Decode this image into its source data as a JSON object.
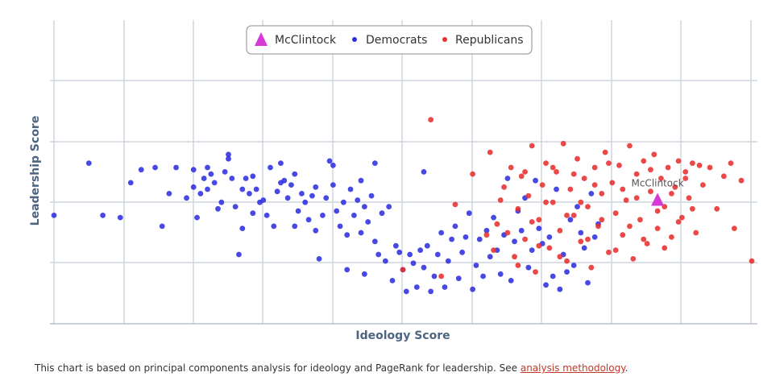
{
  "chart_data": {
    "type": "scatter",
    "xlabel": "Ideology Score",
    "ylabel": "Leadership Score",
    "xlim": [
      -1.0,
      1.0
    ],
    "ylim": [
      0,
      1
    ],
    "grid": true,
    "legend_position": "top-center",
    "series": [
      {
        "name": "McClintock",
        "marker": "triangle",
        "color": "#d63ad6",
        "points": [
          [
            0.73,
            0.45
          ]
        ],
        "label": "McClintock"
      },
      {
        "name": "Democrats",
        "marker": "circle",
        "color": "#2f2fe0",
        "points": [
          [
            -1.0,
            0.38
          ],
          [
            -0.9,
            0.62
          ],
          [
            -0.86,
            0.38
          ],
          [
            -0.81,
            0.37
          ],
          [
            -0.78,
            0.53
          ],
          [
            -0.75,
            0.59
          ],
          [
            -0.71,
            0.6
          ],
          [
            -0.69,
            0.33
          ],
          [
            -0.67,
            0.48
          ],
          [
            -0.65,
            0.6
          ],
          [
            -0.62,
            0.46
          ],
          [
            -0.6,
            0.51
          ],
          [
            -0.6,
            0.59
          ],
          [
            -0.59,
            0.37
          ],
          [
            -0.58,
            0.48
          ],
          [
            -0.57,
            0.55
          ],
          [
            -0.56,
            0.5
          ],
          [
            -0.56,
            0.6
          ],
          [
            -0.55,
            0.57
          ],
          [
            -0.54,
            0.53
          ],
          [
            -0.53,
            0.41
          ],
          [
            -0.52,
            0.44
          ],
          [
            -0.51,
            0.58
          ],
          [
            -0.5,
            0.66
          ],
          [
            -0.5,
            0.64
          ],
          [
            -0.49,
            0.55
          ],
          [
            -0.48,
            0.42
          ],
          [
            -0.47,
            0.2
          ],
          [
            -0.46,
            0.5
          ],
          [
            -0.46,
            0.32
          ],
          [
            -0.45,
            0.55
          ],
          [
            -0.44,
            0.48
          ],
          [
            -0.43,
            0.39
          ],
          [
            -0.43,
            0.56
          ],
          [
            -0.42,
            0.5
          ],
          [
            -0.41,
            0.44
          ],
          [
            -0.4,
            0.45
          ],
          [
            -0.39,
            0.38
          ],
          [
            -0.38,
            0.6
          ],
          [
            -0.37,
            0.33
          ],
          [
            -0.36,
            0.49
          ],
          [
            -0.35,
            0.53
          ],
          [
            -0.35,
            0.62
          ],
          [
            -0.34,
            0.54
          ],
          [
            -0.33,
            0.46
          ],
          [
            -0.32,
            0.52
          ],
          [
            -0.31,
            0.33
          ],
          [
            -0.31,
            0.57
          ],
          [
            -0.3,
            0.4
          ],
          [
            -0.29,
            0.48
          ],
          [
            -0.28,
            0.44
          ],
          [
            -0.27,
            0.36
          ],
          [
            -0.26,
            0.47
          ],
          [
            -0.25,
            0.31
          ],
          [
            -0.25,
            0.51
          ],
          [
            -0.24,
            0.18
          ],
          [
            -0.23,
            0.38
          ],
          [
            -0.22,
            0.46
          ],
          [
            -0.21,
            0.63
          ],
          [
            -0.2,
            0.61
          ],
          [
            -0.2,
            0.52
          ],
          [
            -0.19,
            0.4
          ],
          [
            -0.18,
            0.33
          ],
          [
            -0.17,
            0.44
          ],
          [
            -0.16,
            0.29
          ],
          [
            -0.16,
            0.13
          ],
          [
            -0.15,
            0.5
          ],
          [
            -0.14,
            0.38
          ],
          [
            -0.13,
            0.45
          ],
          [
            -0.12,
            0.3
          ],
          [
            -0.12,
            0.54
          ],
          [
            -0.11,
            0.11
          ],
          [
            -0.11,
            0.42
          ],
          [
            -0.1,
            0.35
          ],
          [
            -0.09,
            0.47
          ],
          [
            -0.08,
            0.26
          ],
          [
            -0.08,
            0.62
          ],
          [
            -0.07,
            0.2
          ],
          [
            -0.06,
            0.39
          ],
          [
            -0.05,
            0.17
          ],
          [
            -0.04,
            0.42
          ],
          [
            -0.03,
            0.08
          ],
          [
            -0.02,
            0.24
          ],
          [
            -0.01,
            0.21
          ],
          [
            0.0,
            0.13
          ],
          [
            0.01,
            0.03
          ],
          [
            0.02,
            0.2
          ],
          [
            0.03,
            0.16
          ],
          [
            0.04,
            0.05
          ],
          [
            0.05,
            0.22
          ],
          [
            0.06,
            0.14
          ],
          [
            0.06,
            0.58
          ],
          [
            0.07,
            0.24
          ],
          [
            0.08,
            0.03
          ],
          [
            0.09,
            0.1
          ],
          [
            0.1,
            0.2
          ],
          [
            0.11,
            0.3
          ],
          [
            0.12,
            0.05
          ],
          [
            0.13,
            0.17
          ],
          [
            0.14,
            0.27
          ],
          [
            0.15,
            0.33
          ],
          [
            0.16,
            0.09
          ],
          [
            0.17,
            0.21
          ],
          [
            0.18,
            0.28
          ],
          [
            0.19,
            0.39
          ],
          [
            0.2,
            0.04
          ],
          [
            0.21,
            0.15
          ],
          [
            0.22,
            0.27
          ],
          [
            0.23,
            0.1
          ],
          [
            0.24,
            0.31
          ],
          [
            0.25,
            0.19
          ],
          [
            0.26,
            0.37
          ],
          [
            0.27,
            0.22
          ],
          [
            0.28,
            0.11
          ],
          [
            0.29,
            0.29
          ],
          [
            0.3,
            0.55
          ],
          [
            0.31,
            0.08
          ],
          [
            0.32,
            0.26
          ],
          [
            0.33,
            0.4
          ],
          [
            0.34,
            0.31
          ],
          [
            0.35,
            0.46
          ],
          [
            0.36,
            0.14
          ],
          [
            0.37,
            0.22
          ],
          [
            0.38,
            0.54
          ],
          [
            0.39,
            0.32
          ],
          [
            0.4,
            0.25
          ],
          [
            0.41,
            0.06
          ],
          [
            0.42,
            0.28
          ],
          [
            0.43,
            0.1
          ],
          [
            0.44,
            0.5
          ],
          [
            0.45,
            0.04
          ],
          [
            0.46,
            0.2
          ],
          [
            0.47,
            0.12
          ],
          [
            0.48,
            0.36
          ],
          [
            0.49,
            0.15
          ],
          [
            0.5,
            0.42
          ],
          [
            0.51,
            0.3
          ],
          [
            0.52,
            0.23
          ],
          [
            0.53,
            0.07
          ],
          [
            0.54,
            0.48
          ],
          [
            0.55,
            0.28
          ],
          [
            0.56,
            0.34
          ]
        ]
      },
      {
        "name": "Republicans",
        "marker": "circle",
        "color": "#e8302f",
        "points": [
          [
            0.08,
            0.82
          ],
          [
            0.0,
            0.13
          ],
          [
            0.11,
            0.1
          ],
          [
            0.15,
            0.43
          ],
          [
            0.2,
            0.57
          ],
          [
            0.24,
            0.29
          ],
          [
            0.25,
            0.67
          ],
          [
            0.27,
            0.34
          ],
          [
            0.29,
            0.51
          ],
          [
            0.31,
            0.6
          ],
          [
            0.32,
            0.19
          ],
          [
            0.33,
            0.41
          ],
          [
            0.34,
            0.56
          ],
          [
            0.35,
            0.27
          ],
          [
            0.36,
            0.47
          ],
          [
            0.37,
            0.7
          ],
          [
            0.38,
            0.12
          ],
          [
            0.39,
            0.36
          ],
          [
            0.4,
            0.52
          ],
          [
            0.41,
            0.62
          ],
          [
            0.42,
            0.23
          ],
          [
            0.43,
            0.44
          ],
          [
            0.44,
            0.58
          ],
          [
            0.45,
            0.31
          ],
          [
            0.46,
            0.71
          ],
          [
            0.47,
            0.17
          ],
          [
            0.48,
            0.5
          ],
          [
            0.49,
            0.38
          ],
          [
            0.5,
            0.64
          ],
          [
            0.51,
            0.26
          ],
          [
            0.52,
            0.55
          ],
          [
            0.53,
            0.42
          ],
          [
            0.54,
            0.14
          ],
          [
            0.55,
            0.6
          ],
          [
            0.56,
            0.33
          ],
          [
            0.57,
            0.48
          ],
          [
            0.58,
            0.67
          ],
          [
            0.59,
            0.21
          ],
          [
            0.6,
            0.53
          ],
          [
            0.61,
            0.39
          ],
          [
            0.62,
            0.61
          ],
          [
            0.63,
            0.29
          ],
          [
            0.64,
            0.45
          ],
          [
            0.65,
            0.7
          ],
          [
            0.66,
            0.18
          ],
          [
            0.67,
            0.57
          ],
          [
            0.68,
            0.36
          ],
          [
            0.69,
            0.63
          ],
          [
            0.7,
            0.25
          ],
          [
            0.71,
            0.49
          ],
          [
            0.72,
            0.66
          ],
          [
            0.73,
            0.32
          ],
          [
            0.74,
            0.55
          ],
          [
            0.75,
            0.42
          ],
          [
            0.76,
            0.6
          ],
          [
            0.77,
            0.28
          ],
          [
            0.78,
            0.51
          ],
          [
            0.79,
            0.63
          ],
          [
            0.8,
            0.37
          ],
          [
            0.81,
            0.58
          ],
          [
            0.82,
            0.46
          ],
          [
            0.83,
            0.62
          ],
          [
            0.84,
            0.3
          ],
          [
            0.86,
            0.52
          ],
          [
            0.88,
            0.6
          ],
          [
            0.9,
            0.41
          ],
          [
            0.92,
            0.56
          ],
          [
            0.94,
            0.62
          ],
          [
            0.95,
            0.32
          ],
          [
            0.97,
            0.54
          ],
          [
            1.0,
            0.17
          ],
          [
            0.26,
            0.22
          ],
          [
            0.28,
            0.45
          ],
          [
            0.3,
            0.3
          ],
          [
            0.33,
            0.15
          ],
          [
            0.35,
            0.58
          ],
          [
            0.37,
            0.35
          ],
          [
            0.39,
            0.24
          ],
          [
            0.41,
            0.44
          ],
          [
            0.43,
            0.6
          ],
          [
            0.45,
            0.19
          ],
          [
            0.47,
            0.38
          ],
          [
            0.49,
            0.57
          ],
          [
            0.51,
            0.44
          ],
          [
            0.53,
            0.27
          ],
          [
            0.55,
            0.52
          ],
          [
            0.57,
            0.36
          ],
          [
            0.59,
            0.62
          ],
          [
            0.61,
            0.22
          ],
          [
            0.63,
            0.5
          ],
          [
            0.65,
            0.33
          ],
          [
            0.67,
            0.46
          ],
          [
            0.69,
            0.27
          ],
          [
            0.71,
            0.59
          ],
          [
            0.73,
            0.4
          ],
          [
            0.75,
            0.23
          ],
          [
            0.77,
            0.48
          ],
          [
            0.79,
            0.35
          ],
          [
            0.81,
            0.55
          ],
          [
            0.83,
            0.41
          ],
          [
            0.85,
            0.61
          ]
        ]
      }
    ]
  },
  "footnote": {
    "text": "This chart is based on principal components analysis for ideology and PageRank for leadership. See ",
    "link": "analysis methodology",
    "end": "."
  }
}
